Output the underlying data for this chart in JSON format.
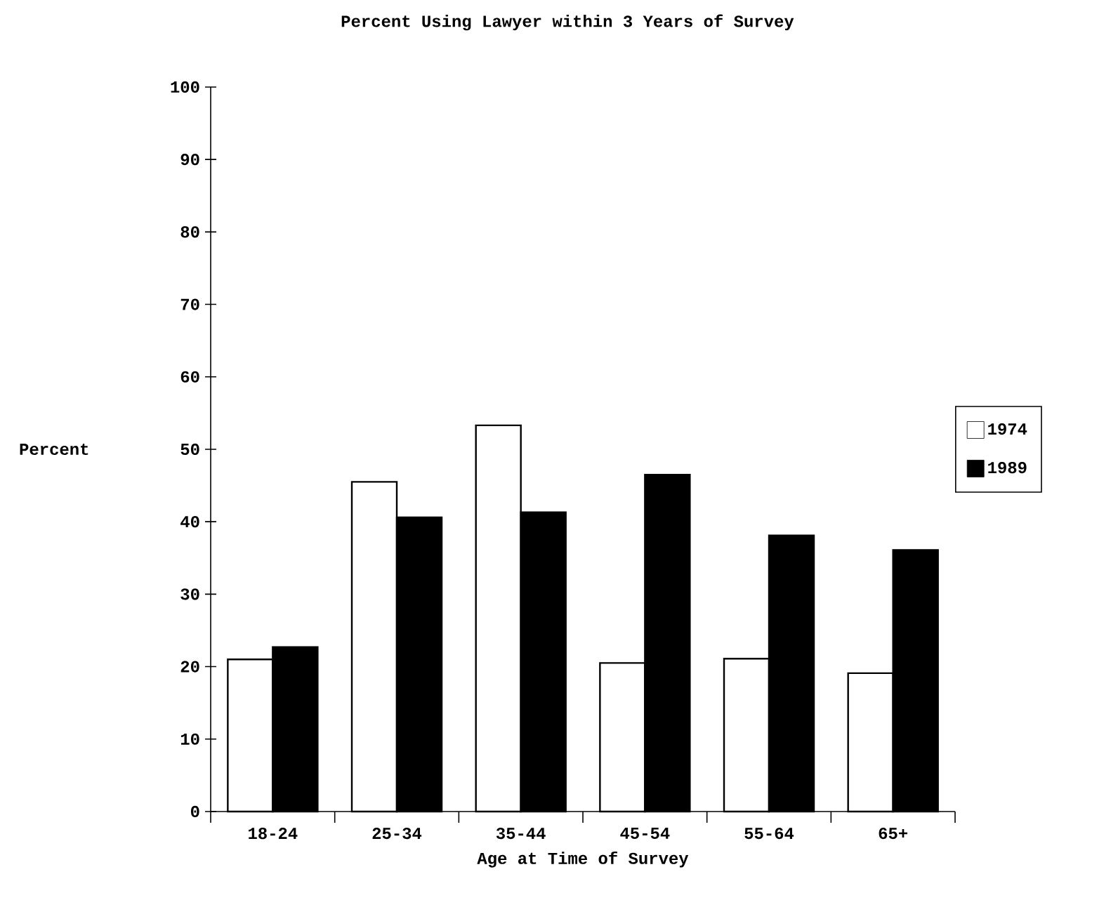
{
  "chart_data": {
    "type": "bar",
    "title": "Percent Using Lawyer within 3 Years of Survey",
    "xlabel": "Age at Time of Survey",
    "ylabel": "Percent",
    "categories": [
      "18-24",
      "25-34",
      "35-44",
      "45-54",
      "55-64",
      "65+"
    ],
    "series": [
      {
        "name": "1974",
        "color": "#ffffff",
        "values": [
          21,
          45.5,
          53.3,
          20.5,
          21.1,
          19.1
        ]
      },
      {
        "name": "1989",
        "color": "#000000",
        "values": [
          22.7,
          40.6,
          41.3,
          46.5,
          38.1,
          36.1
        ]
      }
    ],
    "ylim": [
      0,
      100
    ],
    "yticks": [
      0,
      10,
      20,
      30,
      40,
      50,
      60,
      70,
      80,
      90,
      100
    ],
    "grid": false,
    "legend": "right"
  }
}
